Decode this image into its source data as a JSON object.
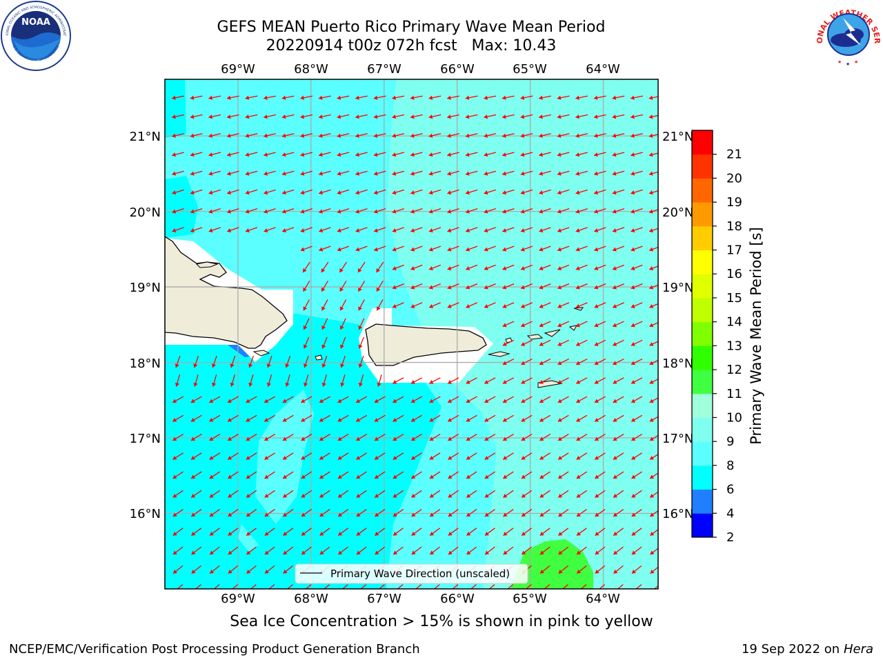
{
  "header": {
    "title_line1": "GEFS MEAN Puerto Rico Primary Wave Mean Period",
    "title_line2": "20220914 t00z 072h fcst   Max: 10.43"
  },
  "logos": {
    "left": "NOAA",
    "left_ring_text": "NATIONAL OCEANIC AND ATMOSPHERIC ADMINISTRATION",
    "left_ring_bottom": "U.S. DEPARTMENT OF COMMERCE",
    "right_ring_text": "NATIONAL WEATHER SERVICE"
  },
  "map": {
    "lon_labels": [
      "69°W",
      "68°W",
      "67°W",
      "66°W",
      "65°W",
      "64°W"
    ],
    "lat_labels": [
      "21°N",
      "20°N",
      "19°N",
      "18°N",
      "17°N",
      "16°N"
    ],
    "extent": {
      "lon_min": -70.0,
      "lon_max": -63.25,
      "lat_min": 15.0,
      "lat_max": 21.75
    },
    "legend_label": "Primary Wave Direction (unscaled)",
    "arrow_color": "#ff0000",
    "land_color": "#efedda"
  },
  "colorbar": {
    "label": "Primary Wave Mean Period [s]",
    "ticks": [
      "2",
      "4",
      "6",
      "8",
      "9",
      "10",
      "11",
      "12",
      "13",
      "14",
      "15",
      "16",
      "17",
      "18",
      "19",
      "20",
      "21"
    ],
    "colors": [
      "#0000ff",
      "#1f7fff",
      "#00ffff",
      "#5bffff",
      "#7ffff0",
      "#a0ffdc",
      "#40ff40",
      "#30ff00",
      "#7fff00",
      "#bfff00",
      "#e0ff00",
      "#ffff00",
      "#ffcc00",
      "#ff9900",
      "#ff6600",
      "#ff3300",
      "#ff0000"
    ]
  },
  "notes": {
    "ice": "Sea Ice Concentration > 15% is shown in pink to yellow"
  },
  "footer": {
    "left": "NCEP/EMC/Verification Post Processing Product Generation Branch",
    "right_date": "19 Sep 2022 on",
    "right_host": "Hera"
  }
}
